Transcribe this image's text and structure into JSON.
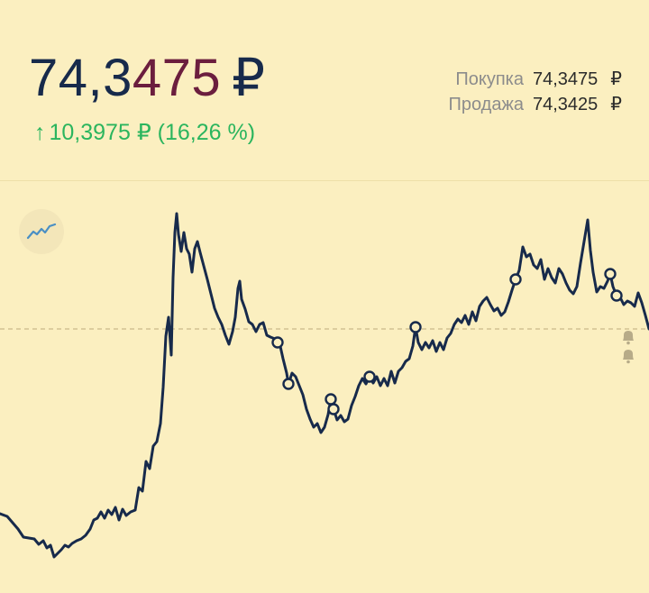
{
  "header": {
    "price_lead": "74,3",
    "price_accent": "475",
    "currency": "₽",
    "change_arrow": "↑",
    "change_text": "10,3975 ₽ (16,26 %)"
  },
  "quotes": [
    {
      "label": "Покупка",
      "value": "74,3475",
      "currency": "₽"
    },
    {
      "label": "Продажа",
      "value": "74,3425",
      "currency": "₽"
    }
  ],
  "colors": {
    "background": "#fbefc0",
    "line": "#172a4b",
    "price_accent": "#6b1e3e",
    "change_positive": "#2bb55e",
    "reference_line": "#c9b98a",
    "bell": "#b7ab88"
  },
  "chart_button_icon": "chart-line-icon",
  "chart_data": {
    "type": "line",
    "reference_line": "dashed horizontal reference line near latest level",
    "alert_icon": "bell-icon",
    "series": [
      {
        "values": [
          [
            0,
            570
          ],
          [
            8,
            573
          ],
          [
            14,
            580
          ],
          [
            20,
            587
          ],
          [
            26,
            596
          ],
          [
            32,
            597
          ],
          [
            38,
            598
          ],
          [
            43,
            604
          ],
          [
            48,
            600
          ],
          [
            52,
            608
          ],
          [
            56,
            605
          ],
          [
            60,
            618
          ],
          [
            64,
            614
          ],
          [
            68,
            610
          ],
          [
            72,
            605
          ],
          [
            76,
            607
          ],
          [
            80,
            603
          ],
          [
            85,
            600
          ],
          [
            90,
            598
          ],
          [
            95,
            594
          ],
          [
            100,
            587
          ],
          [
            104,
            577
          ],
          [
            108,
            575
          ],
          [
            112,
            568
          ],
          [
            116,
            575
          ],
          [
            120,
            566
          ],
          [
            124,
            571
          ],
          [
            128,
            563
          ],
          [
            132,
            577
          ],
          [
            136,
            565
          ],
          [
            140,
            572
          ],
          [
            145,
            568
          ],
          [
            150,
            566
          ],
          [
            154,
            541
          ],
          [
            158,
            545
          ],
          [
            162,
            512
          ],
          [
            166,
            520
          ],
          [
            170,
            495
          ],
          [
            174,
            490
          ],
          [
            178,
            470
          ],
          [
            181,
            430
          ],
          [
            184,
            373
          ],
          [
            187,
            352
          ],
          [
            190,
            394
          ],
          [
            192,
            308
          ],
          [
            194,
            258
          ],
          [
            196,
            237
          ],
          [
            198,
            260
          ],
          [
            201,
            279
          ],
          [
            204,
            258
          ],
          [
            207,
            276
          ],
          [
            210,
            282
          ],
          [
            213,
            302
          ],
          [
            216,
            276
          ],
          [
            219,
            268
          ],
          [
            222,
            280
          ],
          [
            226,
            295
          ],
          [
            230,
            310
          ],
          [
            234,
            326
          ],
          [
            238,
            342
          ],
          [
            242,
            352
          ],
          [
            246,
            360
          ],
          [
            250,
            372
          ],
          [
            254,
            382
          ],
          [
            258,
            368
          ],
          [
            261,
            352
          ],
          [
            264,
            320
          ],
          [
            266,
            312
          ],
          [
            268,
            332
          ],
          [
            272,
            343
          ],
          [
            276,
            357
          ],
          [
            280,
            360
          ],
          [
            284,
            368
          ],
          [
            288,
            360
          ],
          [
            292,
            358
          ],
          [
            296,
            372
          ],
          [
            300,
            374
          ],
          [
            305,
            376
          ],
          [
            310,
            380
          ],
          [
            314,
            398
          ],
          [
            318,
            414
          ],
          [
            320,
            426
          ],
          [
            324,
            414
          ],
          [
            328,
            418
          ],
          [
            332,
            428
          ],
          [
            336,
            438
          ],
          [
            340,
            454
          ],
          [
            344,
            465
          ],
          [
            348,
            474
          ],
          [
            352,
            470
          ],
          [
            356,
            480
          ],
          [
            360,
            474
          ],
          [
            364,
            460
          ],
          [
            367,
            443
          ],
          [
            370,
            454
          ],
          [
            374,
            466
          ],
          [
            378,
            461
          ],
          [
            382,
            468
          ],
          [
            386,
            465
          ],
          [
            390,
            450
          ],
          [
            394,
            440
          ],
          [
            398,
            428
          ],
          [
            402,
            420
          ],
          [
            406,
            426
          ],
          [
            410,
            418
          ],
          [
            414,
            425
          ],
          [
            418,
            418
          ],
          [
            422,
            428
          ],
          [
            426,
            420
          ],
          [
            430,
            428
          ],
          [
            434,
            412
          ],
          [
            438,
            425
          ],
          [
            442,
            412
          ],
          [
            446,
            408
          ],
          [
            450,
            401
          ],
          [
            454,
            398
          ],
          [
            458,
            384
          ],
          [
            461,
            363
          ],
          [
            464,
            380
          ],
          [
            468,
            388
          ],
          [
            472,
            380
          ],
          [
            476,
            386
          ],
          [
            480,
            378
          ],
          [
            484,
            390
          ],
          [
            488,
            380
          ],
          [
            492,
            388
          ],
          [
            496,
            375
          ],
          [
            500,
            370
          ],
          [
            504,
            360
          ],
          [
            508,
            354
          ],
          [
            512,
            358
          ],
          [
            516,
            350
          ],
          [
            520,
            360
          ],
          [
            524,
            346
          ],
          [
            528,
            356
          ],
          [
            532,
            340
          ],
          [
            536,
            334
          ],
          [
            540,
            330
          ],
          [
            544,
            338
          ],
          [
            548,
            345
          ],
          [
            552,
            342
          ],
          [
            556,
            350
          ],
          [
            560,
            346
          ],
          [
            564,
            335
          ],
          [
            568,
            322
          ],
          [
            572,
            310
          ],
          [
            576,
            300
          ],
          [
            580,
            274
          ],
          [
            584,
            285
          ],
          [
            588,
            282
          ],
          [
            592,
            294
          ],
          [
            596,
            298
          ],
          [
            600,
            288
          ],
          [
            604,
            310
          ],
          [
            608,
            298
          ],
          [
            612,
            308
          ],
          [
            616,
            314
          ],
          [
            620,
            298
          ],
          [
            624,
            304
          ],
          [
            628,
            314
          ],
          [
            632,
            322
          ],
          [
            636,
            326
          ],
          [
            640,
            318
          ],
          [
            644,
            292
          ],
          [
            648,
            268
          ],
          [
            652,
            244
          ],
          [
            655,
            278
          ],
          [
            658,
            302
          ],
          [
            662,
            324
          ],
          [
            666,
            318
          ],
          [
            670,
            320
          ],
          [
            674,
            312
          ],
          [
            677,
            304
          ],
          [
            680,
            318
          ],
          [
            684,
            328
          ],
          [
            688,
            330
          ],
          [
            692,
            338
          ],
          [
            696,
            334
          ],
          [
            700,
            336
          ],
          [
            704,
            340
          ],
          [
            708,
            325
          ],
          [
            712,
            336
          ],
          [
            716,
            350
          ],
          [
            720,
            365
          ]
        ]
      }
    ],
    "markers": [
      [
        308,
        380
      ],
      [
        320,
        426
      ],
      [
        367,
        443
      ],
      [
        370,
        454
      ],
      [
        410,
        418
      ],
      [
        461,
        363
      ],
      [
        572,
        310
      ],
      [
        677,
        304
      ],
      [
        684,
        328
      ]
    ]
  }
}
